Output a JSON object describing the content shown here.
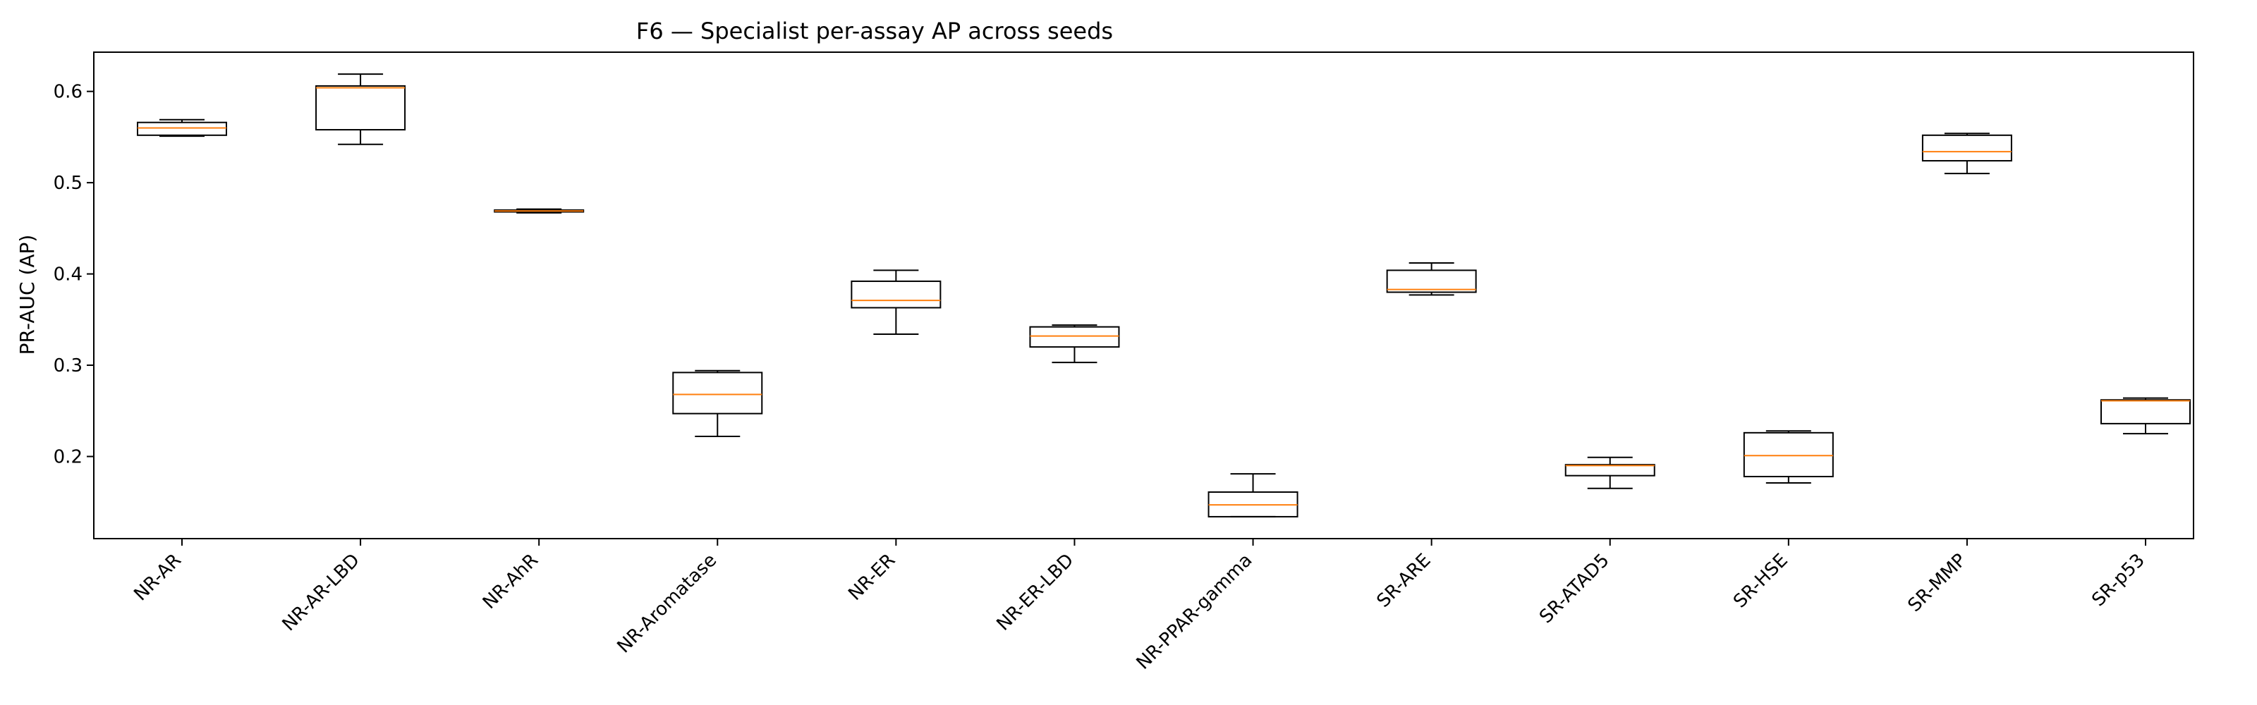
{
  "chart_data": {
    "type": "box",
    "title": "F6 — Specialist per-assay AP across seeds",
    "xlabel": "",
    "ylabel": "PR-AUC (AP)",
    "ylim": [
      0.11,
      0.643
    ],
    "yticks": [
      0.2,
      0.3,
      0.4,
      0.5,
      0.6
    ],
    "yticks_text": [
      "0.2",
      "0.3",
      "0.4",
      "0.5",
      "0.6"
    ],
    "grid": false,
    "colors": {
      "box": "#000000",
      "median": "#ff7f0e"
    },
    "categories": [
      "NR-AR",
      "NR-AR-LBD",
      "NR-AhR",
      "NR-Aromatase",
      "NR-ER",
      "NR-ER-LBD",
      "NR-PPAR-gamma",
      "SR-ARE",
      "SR-ATAD5",
      "SR-HSE",
      "SR-MMP",
      "SR-p53"
    ],
    "boxes": [
      {
        "whisker_low": 0.551,
        "q1": 0.552,
        "median": 0.56,
        "q3": 0.566,
        "whisker_high": 0.569
      },
      {
        "whisker_low": 0.542,
        "q1": 0.558,
        "median": 0.604,
        "q3": 0.606,
        "whisker_high": 0.619
      },
      {
        "whisker_low": 0.467,
        "q1": 0.468,
        "median": 0.469,
        "q3": 0.47,
        "whisker_high": 0.471
      },
      {
        "whisker_low": 0.222,
        "q1": 0.247,
        "median": 0.268,
        "q3": 0.292,
        "whisker_high": 0.294
      },
      {
        "whisker_low": 0.334,
        "q1": 0.363,
        "median": 0.371,
        "q3": 0.392,
        "whisker_high": 0.404
      },
      {
        "whisker_low": 0.303,
        "q1": 0.32,
        "median": 0.332,
        "q3": 0.342,
        "whisker_high": 0.344
      },
      {
        "whisker_low": 0.134,
        "q1": 0.134,
        "median": 0.147,
        "q3": 0.161,
        "whisker_high": 0.181
      },
      {
        "whisker_low": 0.377,
        "q1": 0.38,
        "median": 0.383,
        "q3": 0.404,
        "whisker_high": 0.412
      },
      {
        "whisker_low": 0.165,
        "q1": 0.179,
        "median": 0.19,
        "q3": 0.191,
        "whisker_high": 0.199
      },
      {
        "whisker_low": 0.171,
        "q1": 0.178,
        "median": 0.201,
        "q3": 0.226,
        "whisker_high": 0.228
      },
      {
        "whisker_low": 0.51,
        "q1": 0.524,
        "median": 0.534,
        "q3": 0.552,
        "whisker_high": 0.554
      },
      {
        "whisker_low": 0.225,
        "q1": 0.236,
        "median": 0.261,
        "q3": 0.262,
        "whisker_high": 0.264
      }
    ]
  }
}
